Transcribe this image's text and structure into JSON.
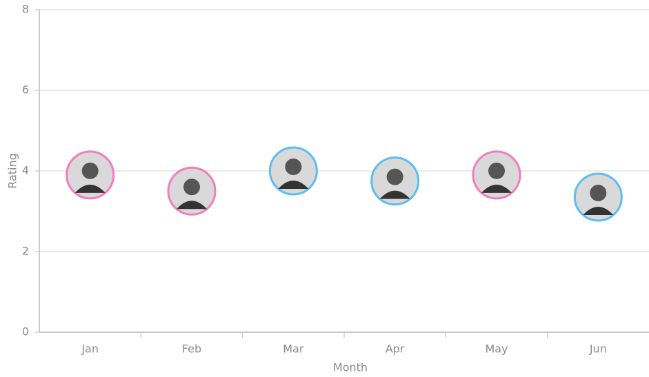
{
  "chart_data": {
    "type": "scatter",
    "x_label": "Month",
    "y_label": "Rating",
    "categories": [
      "Jan",
      "Feb",
      "Mar",
      "Apr",
      "May",
      "Jun"
    ],
    "values": [
      3.9,
      3.5,
      4.0,
      3.75,
      3.9,
      3.35
    ],
    "colors": [
      "#f27cbf",
      "#f27cbf",
      "#5cbdf2",
      "#5cbdf2",
      "#f27cbf",
      "#5cbdf2"
    ],
    "ylim": [
      0,
      8
    ],
    "yticks": [
      0,
      2,
      4,
      6,
      8
    ],
    "grid": true
  }
}
